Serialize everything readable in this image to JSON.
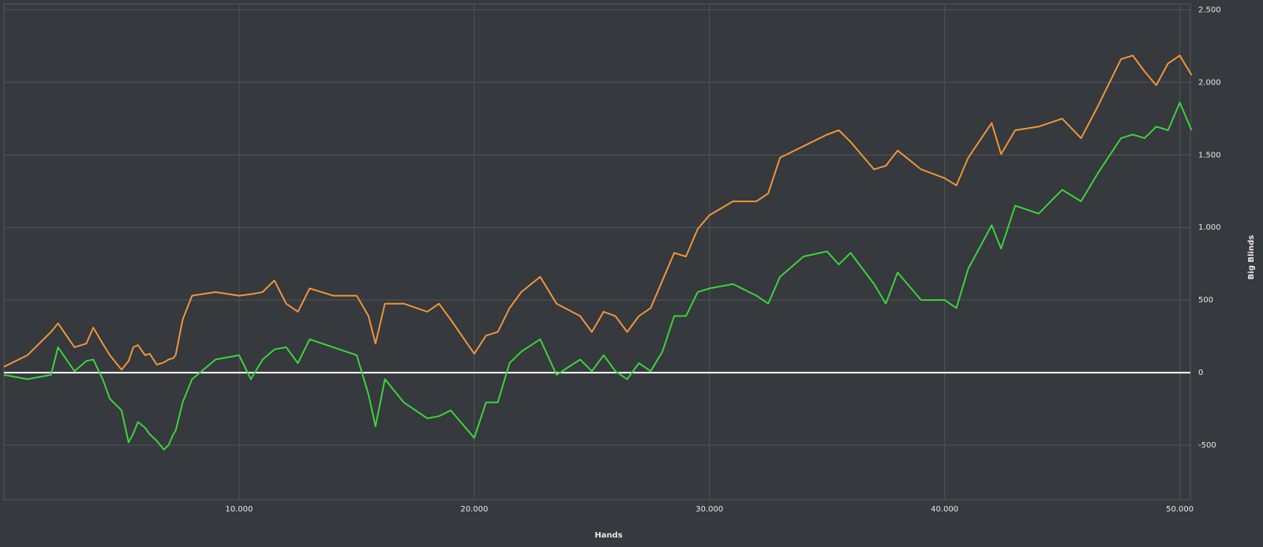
{
  "chart_data": {
    "type": "line",
    "x_label": "Hands",
    "y_label": "Big Blinds",
    "x": [
      0,
      1000,
      2000,
      2300,
      3000,
      3500,
      3800,
      4200,
      4500,
      5000,
      5300,
      5500,
      5700,
      6000,
      6200,
      6500,
      6800,
      7000,
      7200,
      7300,
      7600,
      8000,
      9000,
      10000,
      10500,
      11000,
      11500,
      12000,
      12500,
      13000,
      14000,
      15000,
      15500,
      15800,
      16200,
      17000,
      18000,
      18500,
      19000,
      20000,
      20500,
      21000,
      21500,
      22000,
      22800,
      23500,
      24500,
      25000,
      25500,
      26000,
      26500,
      27000,
      27500,
      28000,
      28500,
      29000,
      29500,
      30000,
      31000,
      32000,
      32500,
      33000,
      34000,
      35000,
      35500,
      36000,
      37000,
      37500,
      38000,
      39000,
      40000,
      40500,
      41000,
      42000,
      42400,
      43000,
      44000,
      45000,
      45800,
      46500,
      47500,
      48000,
      48500,
      49000,
      49500,
      50000,
      50500
    ],
    "series": [
      {
        "color": "#f0953a",
        "values": [
          40,
          120,
          280,
          340,
          175,
          200,
          310,
          200,
          120,
          20,
          80,
          175,
          190,
          120,
          130,
          55,
          70,
          90,
          100,
          120,
          365,
          530,
          555,
          530,
          540,
          555,
          635,
          475,
          420,
          580,
          530,
          530,
          390,
          200,
          475,
          475,
          420,
          475,
          365,
          130,
          255,
          280,
          445,
          555,
          660,
          475,
          390,
          280,
          420,
          390,
          280,
          390,
          445,
          635,
          825,
          800,
          990,
          1085,
          1180,
          1180,
          1235,
          1480,
          1560,
          1640,
          1670,
          1590,
          1400,
          1425,
          1530,
          1400,
          1340,
          1290,
          1480,
          1720,
          1505,
          1670,
          1695,
          1750,
          1615,
          1830,
          2160,
          2185,
          2075,
          1980,
          2130,
          2185,
          2050
        ]
      },
      {
        "color": "#3bd43b",
        "values": [
          -15,
          -45,
          -15,
          175,
          10,
          80,
          90,
          -45,
          -180,
          -260,
          -480,
          -420,
          -340,
          -380,
          -425,
          -470,
          -530,
          -500,
          -425,
          -400,
          -205,
          -45,
          90,
          120,
          -45,
          90,
          160,
          175,
          65,
          230,
          175,
          120,
          -150,
          -370,
          -45,
          -205,
          -315,
          -300,
          -260,
          -450,
          -205,
          -205,
          65,
          145,
          230,
          -15,
          90,
          10,
          120,
          10,
          -45,
          65,
          10,
          145,
          390,
          390,
          555,
          580,
          610,
          530,
          475,
          660,
          800,
          835,
          745,
          825,
          610,
          475,
          690,
          500,
          500,
          445,
          715,
          1015,
          855,
          1150,
          1095,
          1260,
          1180,
          1370,
          1615,
          1640,
          1615,
          1695,
          1670,
          1860,
          1670
        ]
      }
    ],
    "xlim": [
      0,
      50450
    ],
    "ylim": [
      -875,
      2540
    ],
    "xticks": [
      {
        "value": 10000,
        "label": "10.000"
      },
      {
        "value": 20000,
        "label": "20.000"
      },
      {
        "value": 30000,
        "label": "30.000"
      },
      {
        "value": 40000,
        "label": "40.000"
      },
      {
        "value": 50000,
        "label": "50.000"
      }
    ],
    "yticks": [
      -500,
      0,
      500,
      {
        "value": 1000,
        "label": "1.000"
      },
      {
        "value": 1500,
        "label": "1.500"
      },
      {
        "value": 2000,
        "label": "2.000"
      },
      {
        "value": 2500,
        "label": "2.500"
      }
    ],
    "grid": true
  }
}
